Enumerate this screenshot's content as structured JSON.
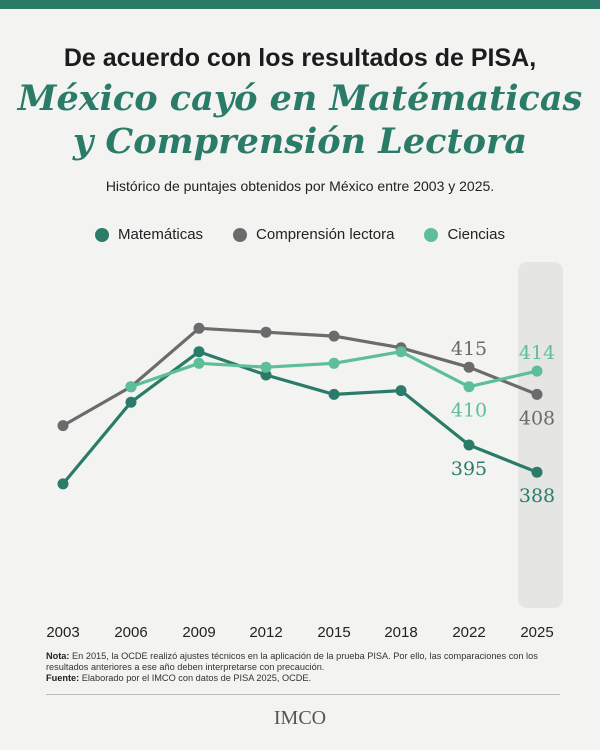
{
  "header": {
    "line1": "De acuerdo con los resultados de PISA,",
    "line2": "México cayó en Matématicas",
    "line3": "y Comprensión Lectora",
    "subtitle": "Histórico de puntajes obtenidos por México entre 2003 y 2025."
  },
  "colors": {
    "matematicas": "#2a7b68",
    "lectura": "#6b6b6b",
    "ciencias": "#5cbf98",
    "highlight_band": "#e5e5e3"
  },
  "chart_data": {
    "type": "line",
    "title": "Histórico de puntajes obtenidos por México entre 2003 y 2025.",
    "xlabel": "",
    "ylabel": "",
    "categories": [
      "2003",
      "2006",
      "2009",
      "2012",
      "2015",
      "2018",
      "2022",
      "2025"
    ],
    "ylim": [
      350,
      440
    ],
    "grid": false,
    "legend": "top-center",
    "series": [
      {
        "name": "Matemáticas",
        "values": [
          385,
          406,
          419,
          413,
          408,
          409,
          395,
          388
        ],
        "color": "#2a7b68"
      },
      {
        "name": "Comprensión lectora",
        "values": [
          400,
          410,
          425,
          424,
          423,
          420,
          415,
          408
        ],
        "color": "#6b6b6b"
      },
      {
        "name": "Ciencias",
        "values": [
          null,
          410,
          416,
          415,
          416,
          419,
          410,
          414
        ],
        "color": "#5cbf98"
      }
    ],
    "annotations": [
      {
        "series": 1,
        "index": 6,
        "text": "415",
        "pos": "above"
      },
      {
        "series": 1,
        "index": 7,
        "text": "408",
        "pos": "below"
      },
      {
        "series": 2,
        "index": 6,
        "text": "410",
        "pos": "below"
      },
      {
        "series": 2,
        "index": 7,
        "text": "414",
        "pos": "above"
      },
      {
        "series": 0,
        "index": 6,
        "text": "395",
        "pos": "below"
      },
      {
        "series": 0,
        "index": 7,
        "text": "388",
        "pos": "below"
      }
    ]
  },
  "footer": {
    "note_label": "Nota:",
    "note_text": "En 2015, la OCDE realizó ajustes técnicos en la aplicación de la prueba PISA. Por ello, las comparaciones con los resultados anteriores a ese año deben interpretarse con precaución.",
    "source_label": "Fuente:",
    "source_text": "Elaborado por el IMCO con datos de PISA 2025, OCDE.",
    "logo": "IMCO"
  }
}
